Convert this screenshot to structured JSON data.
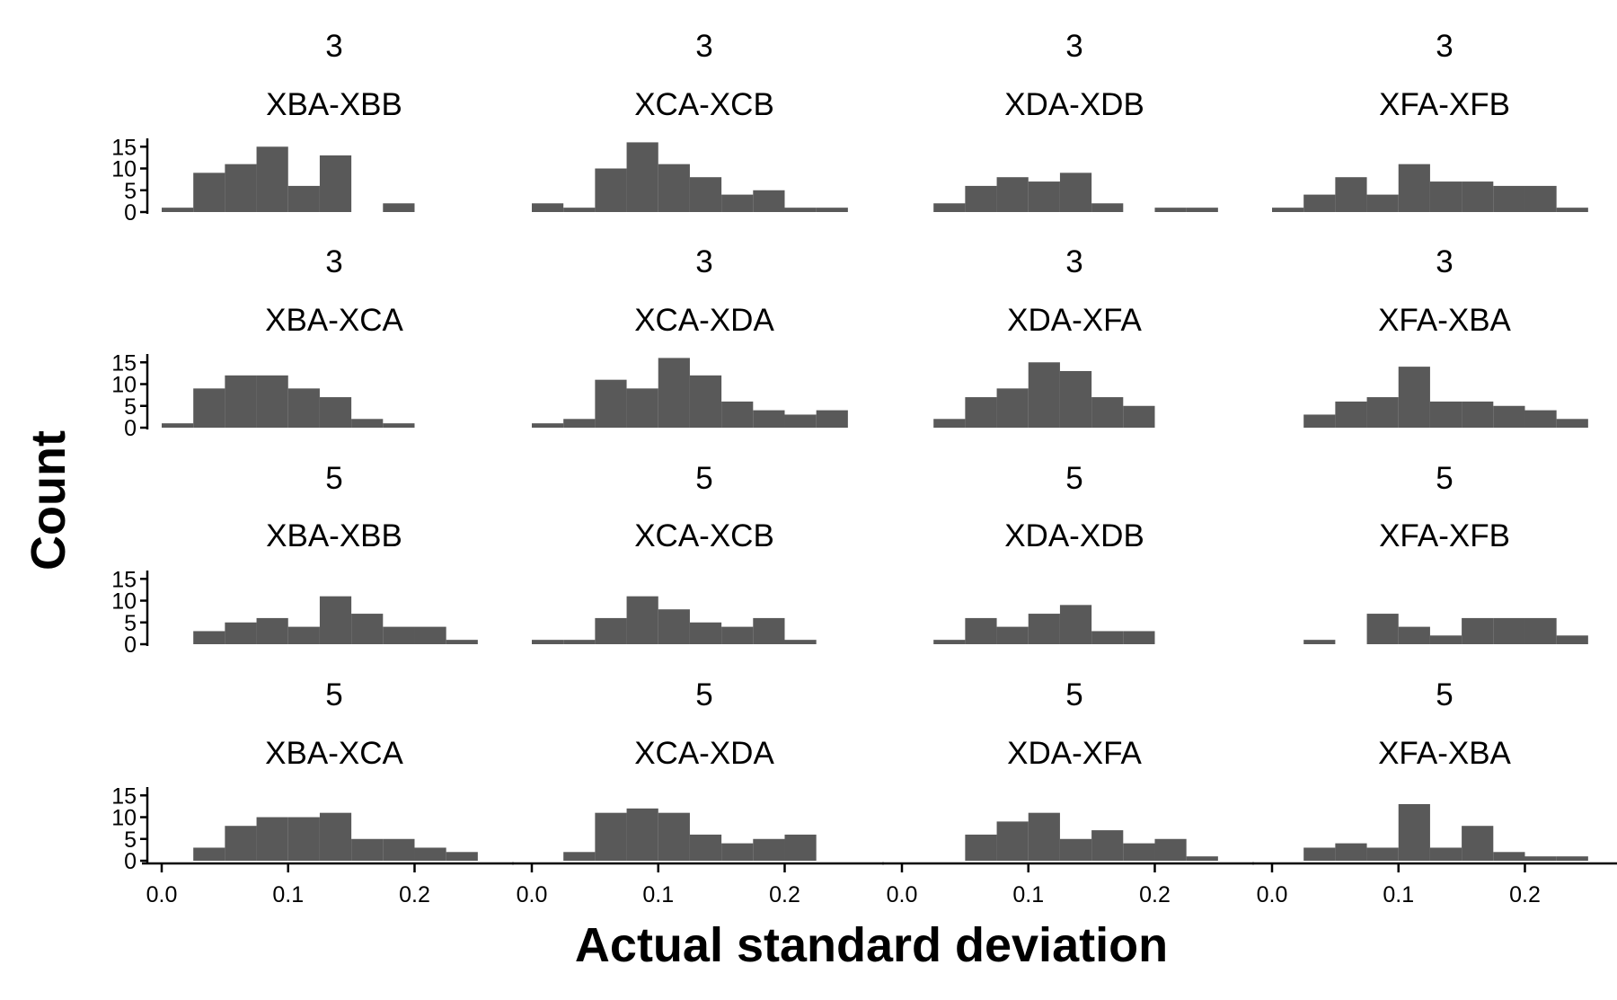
{
  "chart_data": {
    "type": "bar",
    "subtype": "faceted-histogram",
    "xlabel": "Actual standard deviation",
    "ylabel": "Count",
    "bin_width": 0.025,
    "x_ticks": [
      0.0,
      0.1,
      0.2
    ],
    "x_tick_labels": [
      "0.0",
      "0.1",
      "0.2"
    ],
    "xlim": [
      0.0,
      0.27
    ],
    "y_ticks": [
      0,
      5,
      10,
      15
    ],
    "y_tick_labels": [
      "0",
      "5",
      "10",
      "15"
    ],
    "ylim": [
      0,
      16.5
    ],
    "bar_color": "#595959",
    "grid": false,
    "legend": "none",
    "facet_layout": {
      "rows": 4,
      "cols": 4
    },
    "panels": [
      {
        "row": 0,
        "col": 0,
        "strip_top": "3",
        "strip_bottom": "XBA-XBB",
        "bin_starts": [
          0.0,
          0.025,
          0.05,
          0.075,
          0.1,
          0.125,
          0.15,
          0.175,
          0.2
        ],
        "counts": [
          1,
          9,
          11,
          15,
          6,
          13,
          0,
          2,
          0
        ]
      },
      {
        "row": 0,
        "col": 1,
        "strip_top": "3",
        "strip_bottom": "XCA-XCB",
        "bin_starts": [
          0.0,
          0.025,
          0.05,
          0.075,
          0.1,
          0.125,
          0.15,
          0.175,
          0.2,
          0.225
        ],
        "counts": [
          2,
          1,
          10,
          16,
          11,
          8,
          4,
          5,
          1,
          1
        ]
      },
      {
        "row": 0,
        "col": 2,
        "strip_top": "3",
        "strip_bottom": "XDA-XDB",
        "bin_starts": [
          0.025,
          0.05,
          0.075,
          0.1,
          0.125,
          0.15,
          0.175,
          0.2,
          0.225
        ],
        "counts": [
          2,
          6,
          8,
          7,
          9,
          2,
          0,
          1,
          1
        ]
      },
      {
        "row": 0,
        "col": 3,
        "strip_top": "3",
        "strip_bottom": "XFA-XFB",
        "bin_starts": [
          0.0,
          0.025,
          0.05,
          0.075,
          0.1,
          0.125,
          0.15,
          0.175,
          0.2,
          0.225
        ],
        "counts": [
          1,
          4,
          8,
          4,
          11,
          7,
          7,
          6,
          6,
          1
        ]
      },
      {
        "row": 1,
        "col": 0,
        "strip_top": "3",
        "strip_bottom": "XBA-XCA",
        "bin_starts": [
          0.0,
          0.025,
          0.05,
          0.075,
          0.1,
          0.125,
          0.15,
          0.175,
          0.2
        ],
        "counts": [
          1,
          9,
          12,
          12,
          9,
          7,
          2,
          1,
          0
        ]
      },
      {
        "row": 1,
        "col": 1,
        "strip_top": "3",
        "strip_bottom": "XCA-XDA",
        "bin_starts": [
          0.0,
          0.025,
          0.05,
          0.075,
          0.1,
          0.125,
          0.15,
          0.175,
          0.2,
          0.225
        ],
        "counts": [
          1,
          2,
          11,
          9,
          16,
          12,
          6,
          4,
          3,
          4
        ]
      },
      {
        "row": 1,
        "col": 2,
        "strip_top": "3",
        "strip_bottom": "XDA-XFA",
        "bin_starts": [
          0.025,
          0.05,
          0.075,
          0.1,
          0.125,
          0.15,
          0.175
        ],
        "counts": [
          2,
          7,
          9,
          15,
          13,
          7,
          5
        ]
      },
      {
        "row": 1,
        "col": 3,
        "strip_top": "3",
        "strip_bottom": "XFA-XBA",
        "bin_starts": [
          0.025,
          0.05,
          0.075,
          0.1,
          0.125,
          0.15,
          0.175,
          0.2,
          0.225
        ],
        "counts": [
          3,
          6,
          7,
          14,
          6,
          6,
          5,
          4,
          2
        ]
      },
      {
        "row": 2,
        "col": 0,
        "strip_top": "5",
        "strip_bottom": "XBA-XBB",
        "bin_starts": [
          0.025,
          0.05,
          0.075,
          0.1,
          0.125,
          0.15,
          0.175,
          0.2,
          0.225
        ],
        "counts": [
          3,
          5,
          6,
          4,
          11,
          7,
          4,
          4,
          1
        ]
      },
      {
        "row": 2,
        "col": 1,
        "strip_top": "5",
        "strip_bottom": "XCA-XCB",
        "bin_starts": [
          0.0,
          0.025,
          0.05,
          0.075,
          0.1,
          0.125,
          0.15,
          0.175,
          0.2
        ],
        "counts": [
          1,
          1,
          6,
          11,
          8,
          5,
          4,
          6,
          1
        ]
      },
      {
        "row": 2,
        "col": 2,
        "strip_top": "5",
        "strip_bottom": "XDA-XDB",
        "bin_starts": [
          0.025,
          0.05,
          0.075,
          0.1,
          0.125,
          0.15,
          0.175
        ],
        "counts": [
          1,
          6,
          4,
          7,
          9,
          3,
          3
        ]
      },
      {
        "row": 2,
        "col": 3,
        "strip_top": "5",
        "strip_bottom": "XFA-XFB",
        "bin_starts": [
          0.025,
          0.05,
          0.075,
          0.1,
          0.125,
          0.15,
          0.175,
          0.2,
          0.225
        ],
        "counts": [
          1,
          0,
          7,
          4,
          2,
          6,
          6,
          6,
          2
        ]
      },
      {
        "row": 3,
        "col": 0,
        "strip_top": "5",
        "strip_bottom": "XBA-XCA",
        "bin_starts": [
          0.025,
          0.05,
          0.075,
          0.1,
          0.125,
          0.15,
          0.175,
          0.2,
          0.225
        ],
        "counts": [
          3,
          8,
          10,
          10,
          11,
          5,
          5,
          3,
          2
        ]
      },
      {
        "row": 3,
        "col": 1,
        "strip_top": "5",
        "strip_bottom": "XCA-XDA",
        "bin_starts": [
          0.025,
          0.05,
          0.075,
          0.1,
          0.125,
          0.15,
          0.175,
          0.2
        ],
        "counts": [
          2,
          11,
          12,
          11,
          6,
          4,
          5,
          6
        ]
      },
      {
        "row": 3,
        "col": 2,
        "strip_top": "5",
        "strip_bottom": "XDA-XFA",
        "bin_starts": [
          0.05,
          0.075,
          0.1,
          0.125,
          0.15,
          0.175,
          0.2,
          0.225
        ],
        "counts": [
          6,
          9,
          11,
          5,
          7,
          4,
          5,
          1
        ]
      },
      {
        "row": 3,
        "col": 3,
        "strip_top": "5",
        "strip_bottom": "XFA-XBA",
        "bin_starts": [
          0.025,
          0.05,
          0.075,
          0.1,
          0.125,
          0.15,
          0.175,
          0.2,
          0.225
        ],
        "counts": [
          3,
          4,
          3,
          13,
          3,
          8,
          2,
          1,
          1
        ]
      }
    ]
  }
}
